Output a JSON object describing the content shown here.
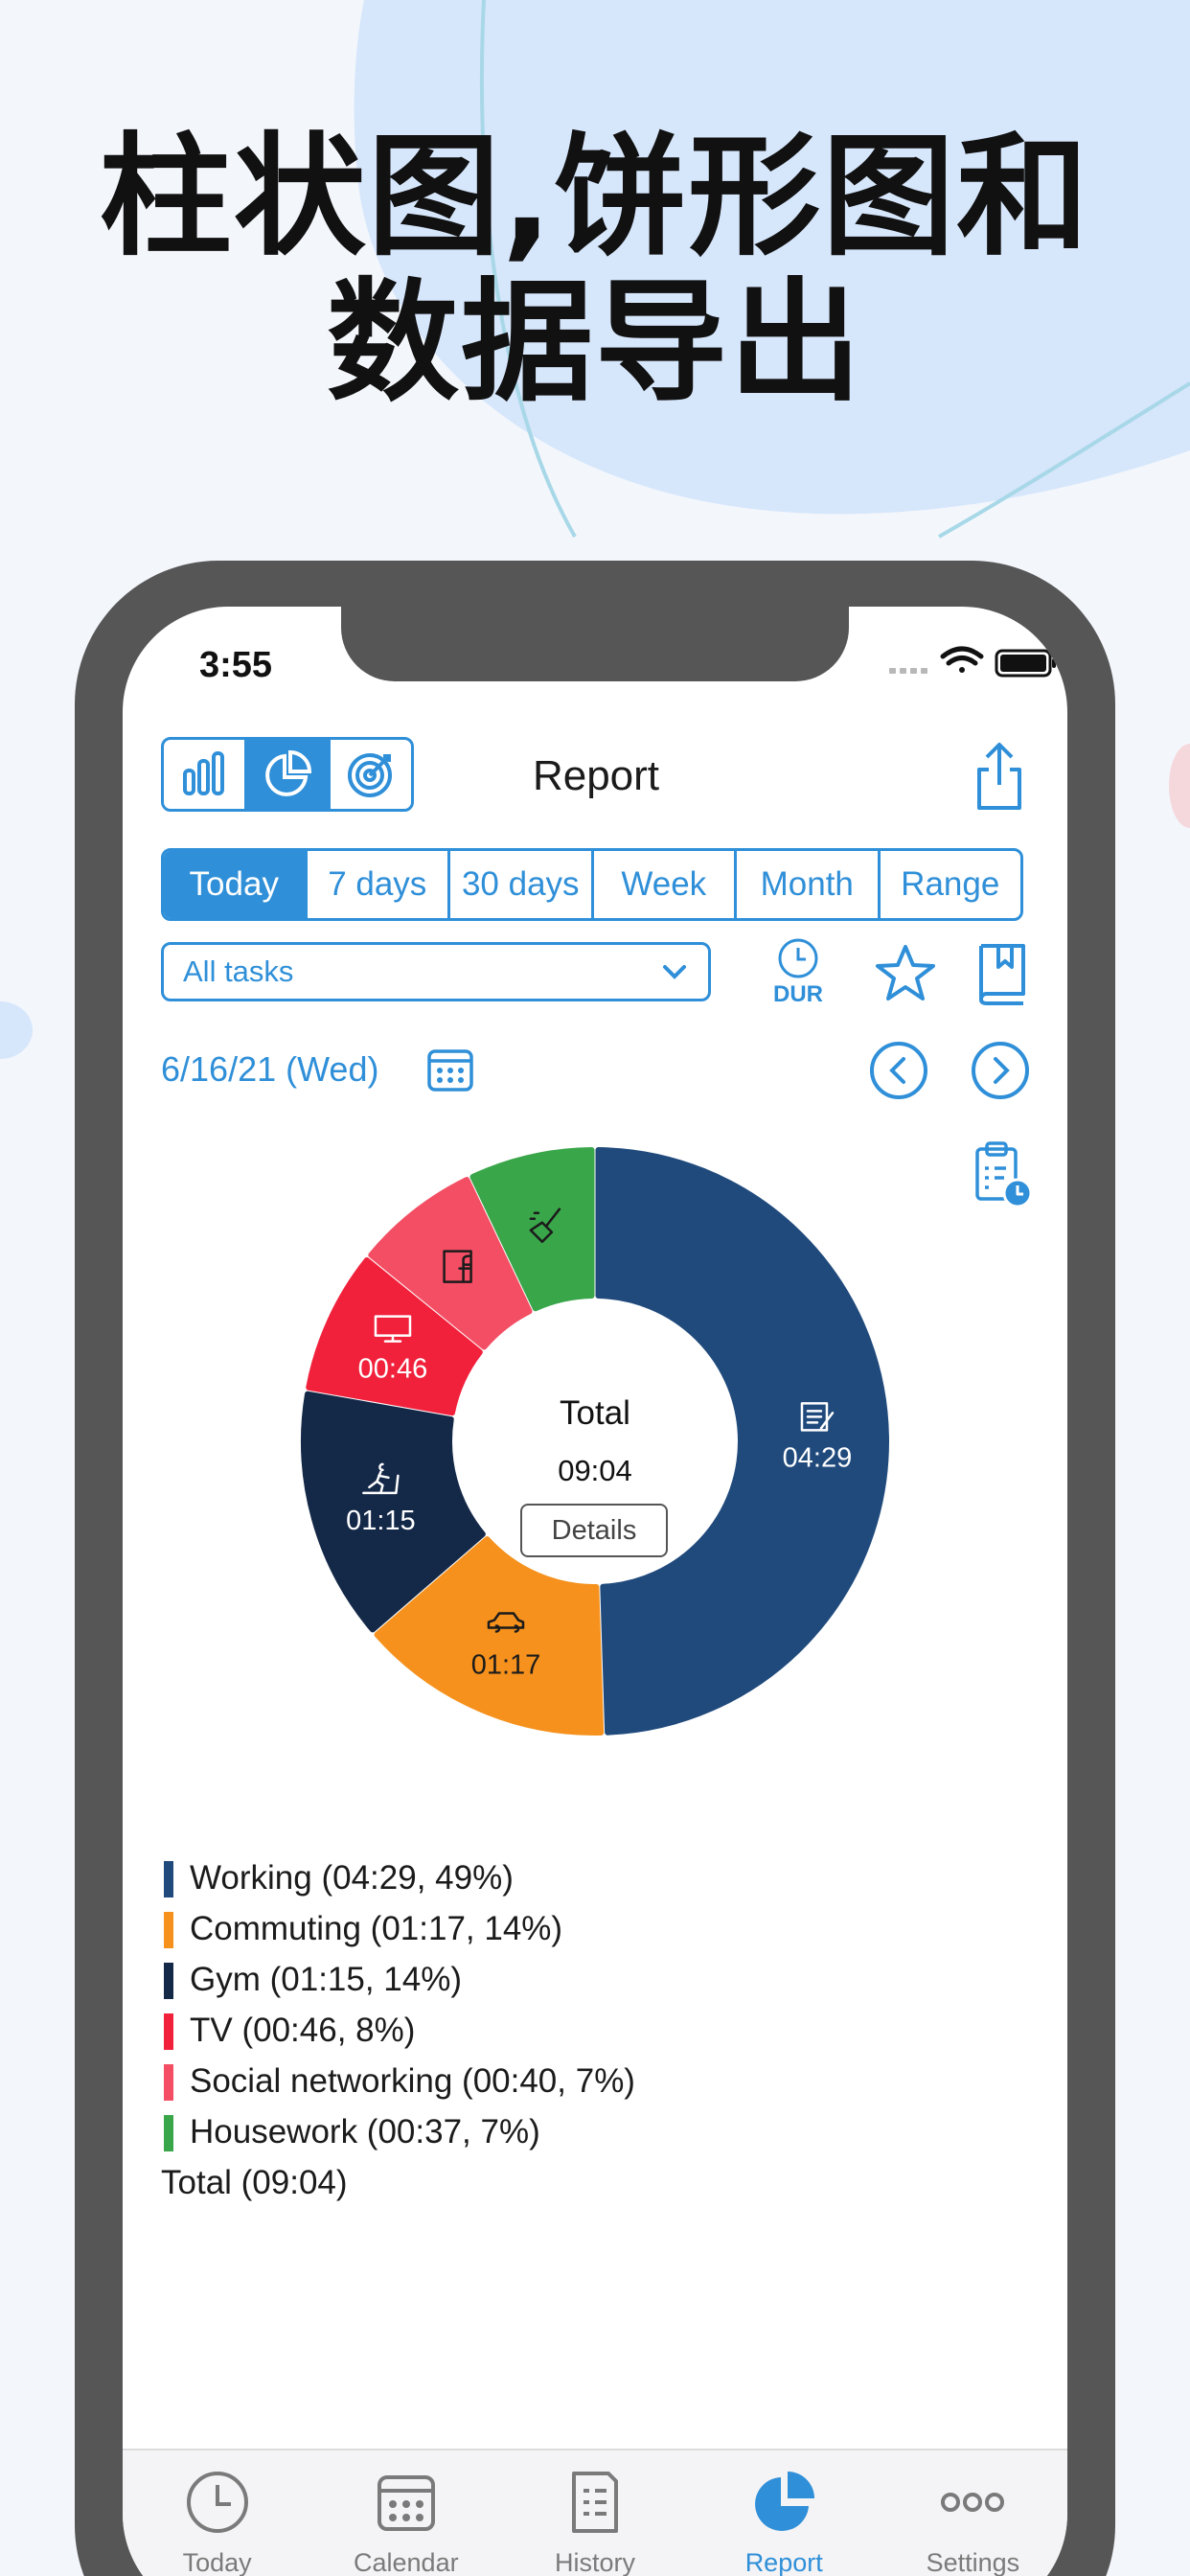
{
  "headline": {
    "line1": "柱状图,饼形图和",
    "line2": "数据导出"
  },
  "status_bar": {
    "time": "3:55"
  },
  "header": {
    "title": "Report",
    "view_modes": [
      "bar-chart-icon",
      "pie-chart-icon",
      "target-icon"
    ],
    "active_view": "pie-chart-icon"
  },
  "period_tabs": [
    {
      "label": "Today",
      "active": true
    },
    {
      "label": "7 days",
      "active": false
    },
    {
      "label": "30 days",
      "active": false
    },
    {
      "label": "Week",
      "active": false
    },
    {
      "label": "Month",
      "active": false
    },
    {
      "label": "Range",
      "active": false
    }
  ],
  "filters": {
    "task_select_value": "All tasks",
    "dur_label": "DUR"
  },
  "date_nav": {
    "date": "6/16/21 (Wed)"
  },
  "chart": {
    "center_title": "Total",
    "center_value": "09:04",
    "details_label": "Details"
  },
  "chart_data": {
    "type": "pie",
    "donut": true,
    "slices": [
      {
        "name": "Working",
        "duration": "04:29",
        "percent": 49,
        "color": "#204a7c",
        "icon": "document-pen-icon",
        "label": "04:29"
      },
      {
        "name": "Commuting",
        "duration": "01:17",
        "percent": 14,
        "color": "#f5911c",
        "icon": "car-icon",
        "label": "01:17"
      },
      {
        "name": "Gym",
        "duration": "01:15",
        "percent": 14,
        "color": "#142848",
        "icon": "treadmill-icon",
        "label": "01:15"
      },
      {
        "name": "TV",
        "duration": "00:46",
        "percent": 8,
        "color": "#f1213c",
        "icon": "tv-icon",
        "label": "00:46"
      },
      {
        "name": "Social networking",
        "duration": "00:40",
        "percent": 7,
        "color": "#f34e64",
        "icon": "facebook-icon",
        "label": ""
      },
      {
        "name": "Housework",
        "duration": "00:37",
        "percent": 7,
        "color": "#3aa64a",
        "icon": "broom-icon",
        "label": ""
      }
    ],
    "total": "09:04"
  },
  "legend": {
    "rows": [
      {
        "text": "Working (04:29, 49%)",
        "color": "#204a7c"
      },
      {
        "text": "Commuting (01:17, 14%)",
        "color": "#f5911c"
      },
      {
        "text": "Gym (01:15, 14%)",
        "color": "#142848"
      },
      {
        "text": "TV (00:46, 8%)",
        "color": "#f1213c"
      },
      {
        "text": "Social networking (00:40, 7%)",
        "color": "#f34e64"
      },
      {
        "text": "Housework (00:37, 7%)",
        "color": "#3aa64a"
      }
    ],
    "total": "Total (09:04)"
  },
  "tab_bar": {
    "items": [
      {
        "label": "Today",
        "icon": "clock-icon",
        "active": false
      },
      {
        "label": "Calendar",
        "icon": "calendar-icon",
        "active": false
      },
      {
        "label": "History",
        "icon": "history-icon",
        "active": false
      },
      {
        "label": "Report",
        "icon": "pie-chart-icon",
        "active": true
      },
      {
        "label": "Settings",
        "icon": "more-icon",
        "active": false
      }
    ]
  },
  "colors": {
    "accent": "#2f8fd8",
    "phone_frame": "#565656",
    "backdrop_blob": "#d6e6fb"
  }
}
